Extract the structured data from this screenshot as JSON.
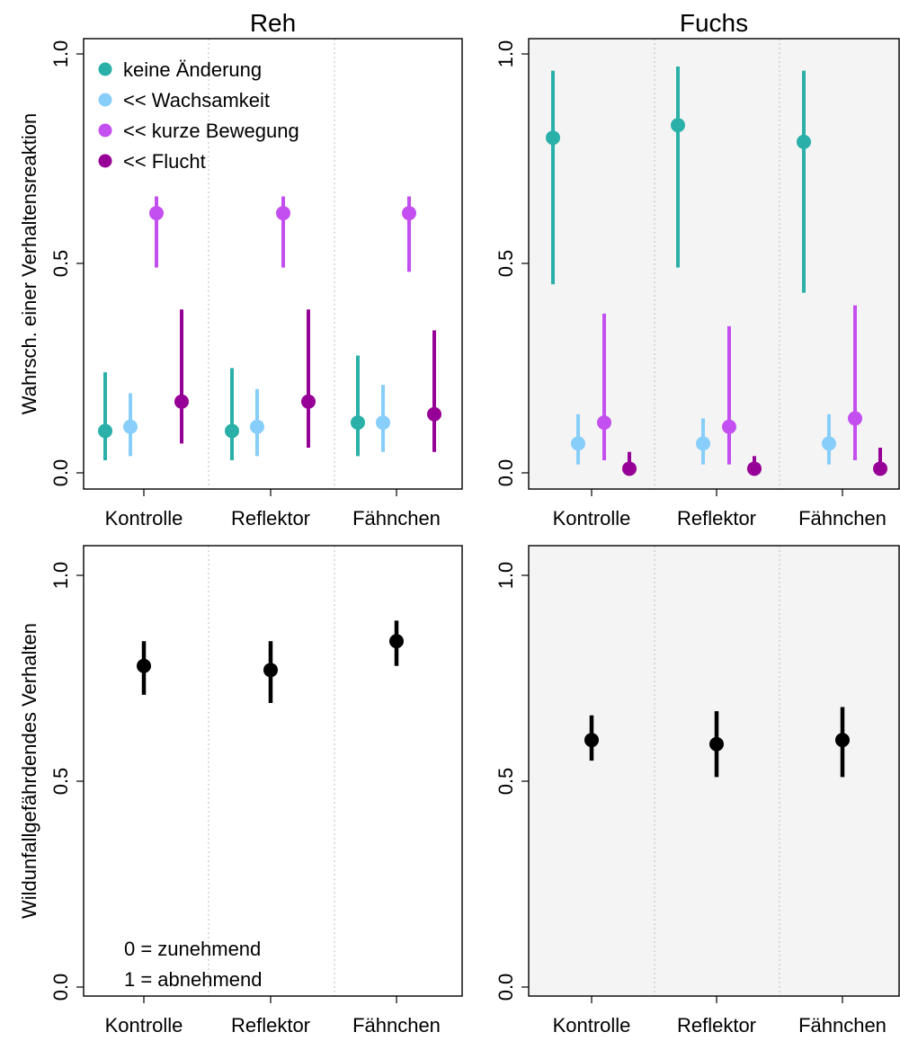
{
  "chart_data": [
    {
      "type": "scatter",
      "title": "Reh",
      "ylabel": "Wahrsch. einer Verhaltensreaktion",
      "categories": [
        "Kontrolle",
        "Reflektor",
        "Fähnchen"
      ],
      "ylim": [
        0,
        1
      ],
      "yticks": [
        "0.0",
        "0.5",
        "1.0"
      ],
      "background": "#ffffff",
      "legend": "top-left",
      "series": [
        {
          "name": "keine Änderung",
          "color": "#2ab0a8",
          "values": [
            0.1,
            0.1,
            0.12
          ],
          "lower": [
            0.03,
            0.03,
            0.04
          ],
          "upper": [
            0.24,
            0.25,
            0.28
          ]
        },
        {
          "name": "<< Wachsamkeit",
          "color": "#87cefa",
          "values": [
            0.11,
            0.11,
            0.12
          ],
          "lower": [
            0.04,
            0.04,
            0.05
          ],
          "upper": [
            0.19,
            0.2,
            0.21
          ]
        },
        {
          "name": "<< kurze Bewegung",
          "color": "#c44ff0",
          "values": [
            0.62,
            0.62,
            0.62
          ],
          "lower": [
            0.49,
            0.49,
            0.48
          ],
          "upper": [
            0.66,
            0.66,
            0.66
          ]
        },
        {
          "name": "<< Flucht",
          "color": "#960096",
          "values": [
            0.17,
            0.17,
            0.14
          ],
          "lower": [
            0.07,
            0.06,
            0.05
          ],
          "upper": [
            0.39,
            0.39,
            0.34
          ]
        }
      ]
    },
    {
      "type": "scatter",
      "title": "Fuchs",
      "ylabel": "",
      "categories": [
        "Kontrolle",
        "Reflektor",
        "Fähnchen"
      ],
      "ylim": [
        0,
        1
      ],
      "yticks": [
        "0.0",
        "0.5",
        "1.0"
      ],
      "background": "#f4f4f4",
      "series": [
        {
          "name": "keine Änderung",
          "color": "#2ab0a8",
          "values": [
            0.8,
            0.83,
            0.79
          ],
          "lower": [
            0.45,
            0.49,
            0.43
          ],
          "upper": [
            0.96,
            0.97,
            0.96
          ]
        },
        {
          "name": "<< Wachsamkeit",
          "color": "#87cefa",
          "values": [
            0.07,
            0.07,
            0.07
          ],
          "lower": [
            0.02,
            0.02,
            0.02
          ],
          "upper": [
            0.14,
            0.13,
            0.14
          ]
        },
        {
          "name": "<< kurze Bewegung",
          "color": "#c44ff0",
          "values": [
            0.12,
            0.11,
            0.13
          ],
          "lower": [
            0.03,
            0.02,
            0.03
          ],
          "upper": [
            0.38,
            0.35,
            0.4
          ]
        },
        {
          "name": "<< Flucht",
          "color": "#960096",
          "values": [
            0.01,
            0.01,
            0.01
          ],
          "lower": [
            0.0,
            0.0,
            0.0
          ],
          "upper": [
            0.05,
            0.04,
            0.06
          ]
        }
      ]
    },
    {
      "type": "scatter",
      "title": "",
      "ylabel": "Wildunfallgefährdendes Verhalten",
      "categories": [
        "Kontrolle",
        "Reflektor",
        "Fähnchen"
      ],
      "ylim": [
        0,
        1
      ],
      "yticks": [
        "0.0",
        "0.5",
        "1.0"
      ],
      "background": "#ffffff",
      "annotation": [
        "0 = zunehmend",
        "1 = abnehmend"
      ],
      "series": [
        {
          "color": "#000000",
          "values": [
            0.78,
            0.77,
            0.84
          ],
          "lower": [
            0.71,
            0.69,
            0.78
          ],
          "upper": [
            0.84,
            0.84,
            0.89
          ]
        }
      ]
    },
    {
      "type": "scatter",
      "title": "",
      "ylabel": "",
      "categories": [
        "Kontrolle",
        "Reflektor",
        "Fähnchen"
      ],
      "ylim": [
        0,
        1
      ],
      "yticks": [
        "0.0",
        "0.5",
        "1.0"
      ],
      "background": "#f4f4f4",
      "series": [
        {
          "color": "#000000",
          "values": [
            0.6,
            0.59,
            0.6
          ],
          "lower": [
            0.55,
            0.51,
            0.51
          ],
          "upper": [
            0.66,
            0.67,
            0.68
          ]
        }
      ]
    }
  ]
}
